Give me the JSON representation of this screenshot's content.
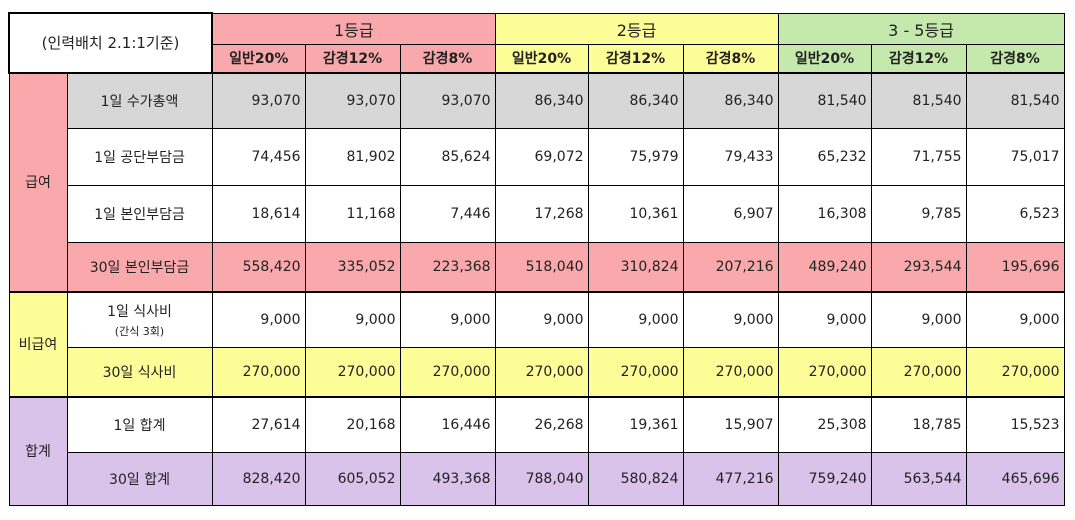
{
  "corner_label": "(인력배치 2.1:1기준)",
  "grades": [
    "1등급",
    "2등급",
    "3 - 5등급"
  ],
  "sub_headers": [
    "일반20%",
    "감경12%",
    "감경8%",
    "일반20%",
    "감경12%",
    "감경8%",
    "일반20%",
    "감경12%",
    "감경8%"
  ],
  "sections": [
    {
      "category": "급여",
      "rows": [
        {
          "label": "1일 수가총액",
          "sublabel": "",
          "values": [
            "93,070",
            "93,070",
            "93,070",
            "86,340",
            "86,340",
            "86,340",
            "81,540",
            "81,540",
            "81,540"
          ]
        },
        {
          "label": "1일 공단부담금",
          "sublabel": "",
          "values": [
            "74,456",
            "81,902",
            "85,624",
            "69,072",
            "75,979",
            "79,433",
            "65,232",
            "71,755",
            "75,017"
          ]
        },
        {
          "label": "1일 본인부담금",
          "sublabel": "",
          "values": [
            "18,614",
            "11,168",
            "7,446",
            "17,268",
            "10,361",
            "6,907",
            "16,308",
            "9,785",
            "6,523"
          ]
        },
        {
          "label": "30일 본인부담금",
          "sublabel": "",
          "values": [
            "558,420",
            "335,052",
            "223,368",
            "518,040",
            "310,824",
            "207,216",
            "489,240",
            "293,544",
            "195,696"
          ]
        }
      ]
    },
    {
      "category": "비급여",
      "rows": [
        {
          "label": "1일 식사비",
          "sublabel": "(간식 3회)",
          "values": [
            "9,000",
            "9,000",
            "9,000",
            "9,000",
            "9,000",
            "9,000",
            "9,000",
            "9,000",
            "9,000"
          ]
        },
        {
          "label": "30일 식사비",
          "sublabel": "",
          "values": [
            "270,000",
            "270,000",
            "270,000",
            "270,000",
            "270,000",
            "270,000",
            "270,000",
            "270,000",
            "270,000"
          ]
        }
      ]
    },
    {
      "category": "합계",
      "rows": [
        {
          "label": "1일 합계",
          "sublabel": "",
          "values": [
            "27,614",
            "20,168",
            "16,446",
            "26,268",
            "19,361",
            "15,907",
            "25,308",
            "18,785",
            "15,523"
          ]
        },
        {
          "label": "30일 합계",
          "sublabel": "",
          "values": [
            "828,420",
            "605,052",
            "493,368",
            "788,040",
            "580,824",
            "477,216",
            "759,240",
            "563,544",
            "465,696"
          ]
        }
      ]
    }
  ]
}
